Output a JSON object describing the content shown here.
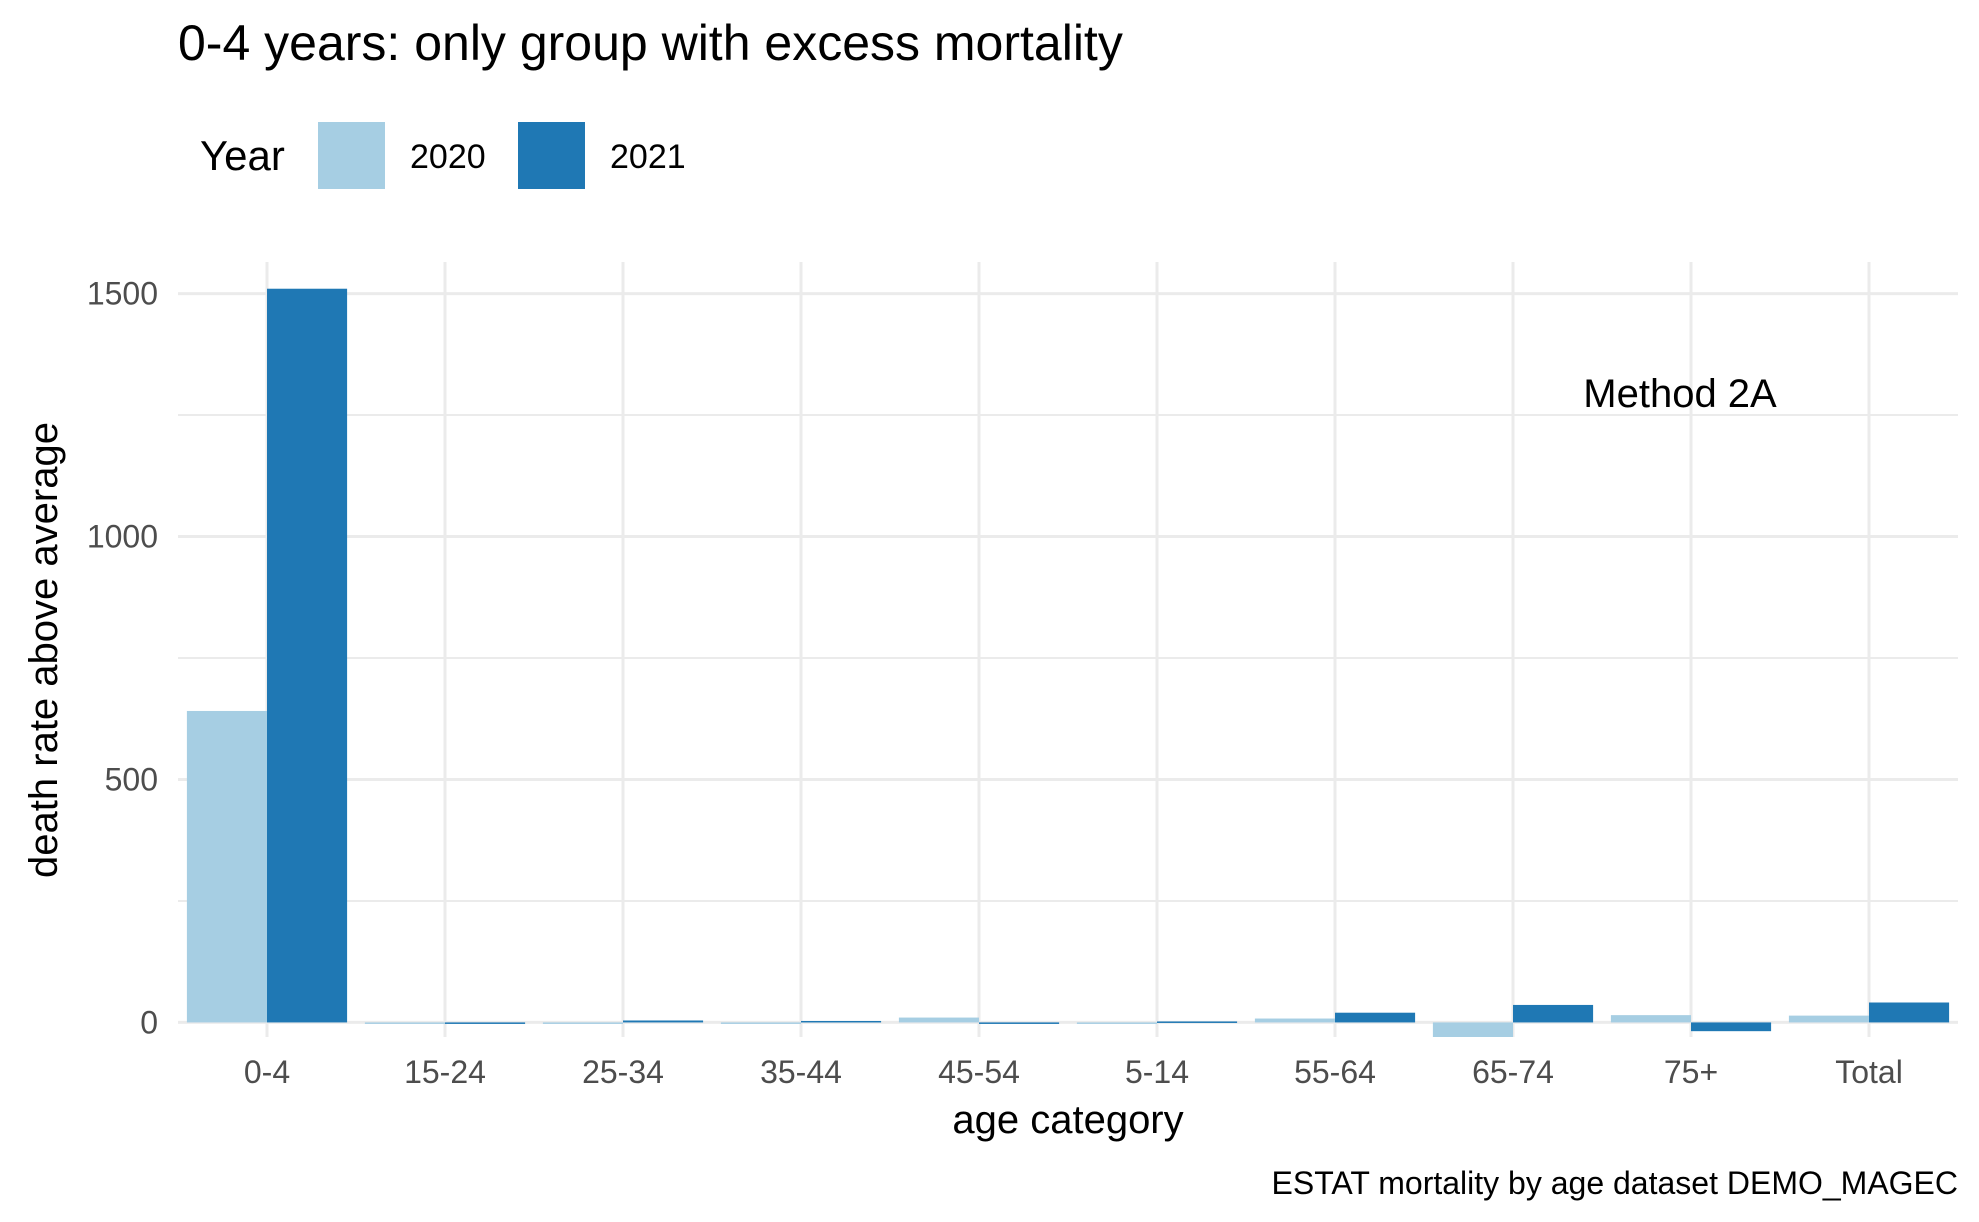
{
  "chart_data": {
    "type": "bar",
    "title": "0-4 years: only group with excess mortality",
    "xlabel": "age category",
    "ylabel": "death rate above average",
    "annotation": "Method 2A",
    "caption": "ESTAT mortality by age dataset DEMO_MAGEC",
    "legend_title": "Year",
    "legend_position": "top-left",
    "categories": [
      "0-4",
      "15-24",
      "25-34",
      "35-44",
      "45-54",
      "5-14",
      "55-64",
      "65-74",
      "75+",
      "Total"
    ],
    "series": [
      {
        "name": "2020",
        "color": "#a6cee3",
        "values": [
          641,
          -2,
          -3,
          -2,
          10,
          -1,
          8,
          -30,
          15,
          14
        ]
      },
      {
        "name": "2021",
        "color": "#1f78b4",
        "values": [
          1510,
          -3,
          4,
          3,
          -3,
          2,
          20,
          36,
          -18,
          41
        ]
      }
    ],
    "ylim": [
      -30,
      1565
    ],
    "yticks": [
      0,
      500,
      1000,
      1500
    ],
    "ytick_labels": [
      "0",
      "500",
      "1000",
      "1500"
    ],
    "grid": true
  }
}
